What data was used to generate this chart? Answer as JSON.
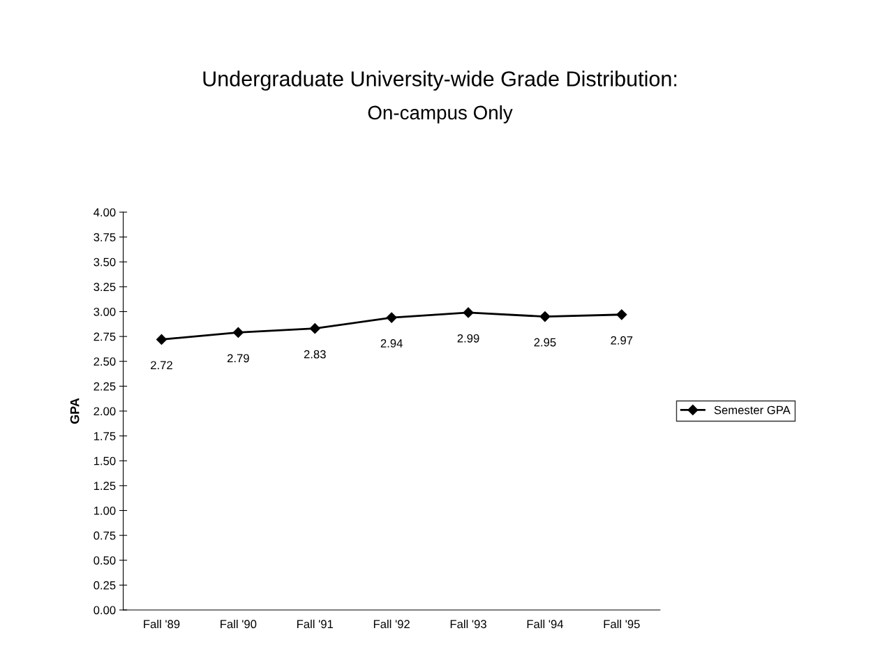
{
  "chart_data": {
    "type": "line",
    "title": "Undergraduate University-wide Grade Distribution:",
    "subtitle": "On-campus Only",
    "ylabel": "GPA",
    "categories": [
      "Fall '89",
      "Fall '90",
      "Fall '91",
      "Fall '92",
      "Fall '93",
      "Fall '94",
      "Fall '95"
    ],
    "series": [
      {
        "name": "Semester GPA",
        "color": "#000000",
        "values": [
          2.72,
          2.79,
          2.83,
          2.94,
          2.99,
          2.95,
          2.97
        ]
      }
    ],
    "ylim": [
      0,
      4
    ],
    "yticks": [
      {
        "value": 0,
        "label": "0.00"
      },
      {
        "value": 0.25,
        "label": "0.25"
      },
      {
        "value": 0.5,
        "label": "0.50"
      },
      {
        "value": 0.75,
        "label": "0.75"
      },
      {
        "value": 1,
        "label": "1.00"
      },
      {
        "value": 1.25,
        "label": "1.25"
      },
      {
        "value": 1.5,
        "label": "1.50"
      },
      {
        "value": 1.75,
        "label": "1.75"
      },
      {
        "value": 2,
        "label": "2.00"
      },
      {
        "value": 2.25,
        "label": "2.25"
      },
      {
        "value": 2.5,
        "label": "2.50"
      },
      {
        "value": 2.75,
        "label": "2.75"
      },
      {
        "value": 3,
        "label": "3.00"
      },
      {
        "value": 3.25,
        "label": "3.25"
      },
      {
        "value": 3.5,
        "label": "3.50"
      },
      {
        "value": 3.75,
        "label": "3.75"
      },
      {
        "value": 4,
        "label": "4.00"
      }
    ],
    "data_labels": true,
    "grid": false,
    "legend": "right",
    "marker": "diamond",
    "line_style": "solid"
  }
}
